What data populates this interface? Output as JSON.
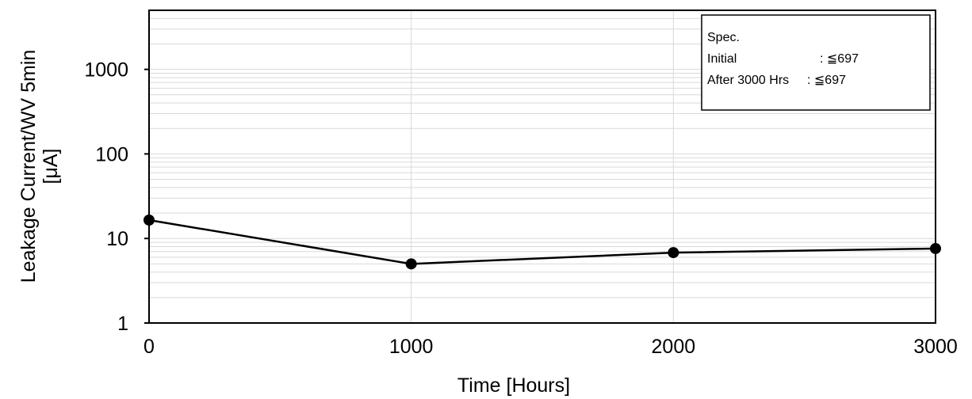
{
  "chart_data": {
    "type": "line",
    "x": [
      0,
      1000,
      2000,
      3000
    ],
    "series": [
      {
        "values": [
          16.5,
          5.0,
          6.8,
          7.6
        ]
      }
    ],
    "xlabel": "Time [Hours]",
    "ylabel": "Leakage Current/WV 5min",
    "ylabel_unit": "[μA]",
    "xlim": [
      0,
      3000
    ],
    "ylim": [
      1,
      5000
    ],
    "yscale": "log",
    "x_ticks": [
      "0",
      "1000",
      "2000",
      "3000"
    ],
    "y_ticks": [
      "1",
      "10",
      "100",
      "1000"
    ],
    "grid": true,
    "legend_box": {
      "title": "Spec.",
      "lines": [
        {
          "label": "Initial",
          "value": ": ≦697"
        },
        {
          "label": "After 3000 Hrs",
          "value": ": ≦697"
        }
      ],
      "placement": "top-right"
    },
    "colors": {
      "line": "#000000",
      "marker": "#000000",
      "grid": "#d9d9d9"
    }
  }
}
